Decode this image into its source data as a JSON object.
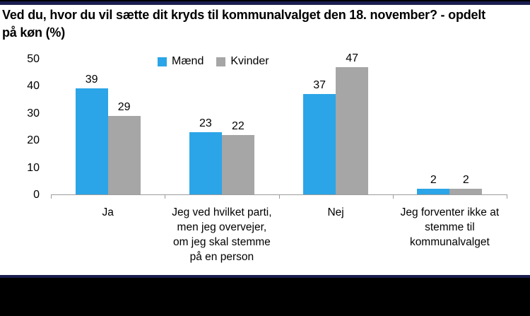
{
  "header": {
    "line1": "Ved du, hvor du vil sætte dit kryds til kommunalvalget den 18. november?  - opdelt",
    "line2": "på køn (%)"
  },
  "chart_data": {
    "type": "bar",
    "title": "Ved du, hvor du vil sætte dit kryds til kommunalvalget den 18. november? - opdelt på køn (%)",
    "categories": [
      "Ja",
      "Jeg ved hvilket parti,\nmen jeg overvejer,\nom jeg skal stemme\npå en person",
      "Nej",
      "Jeg forventer ikke at\nstemme til\nkommunalvalget"
    ],
    "series": [
      {
        "name": "Mænd",
        "color": "#2BA5E7",
        "values": [
          39,
          23,
          37,
          2
        ]
      },
      {
        "name": "Kvinder",
        "color": "#A6A6A6",
        "values": [
          29,
          22,
          47,
          2
        ]
      }
    ],
    "ylim": [
      0,
      50
    ],
    "yticks": [
      0,
      10,
      20,
      30,
      40,
      50
    ],
    "grid": false,
    "legend_position": "top",
    "data_labels": true,
    "axis_color": "#9C9C9C"
  },
  "colors": {
    "border_navy": "#191D4E",
    "border_black": "#000000",
    "background": "#FFFFFF",
    "text": "#000000"
  }
}
